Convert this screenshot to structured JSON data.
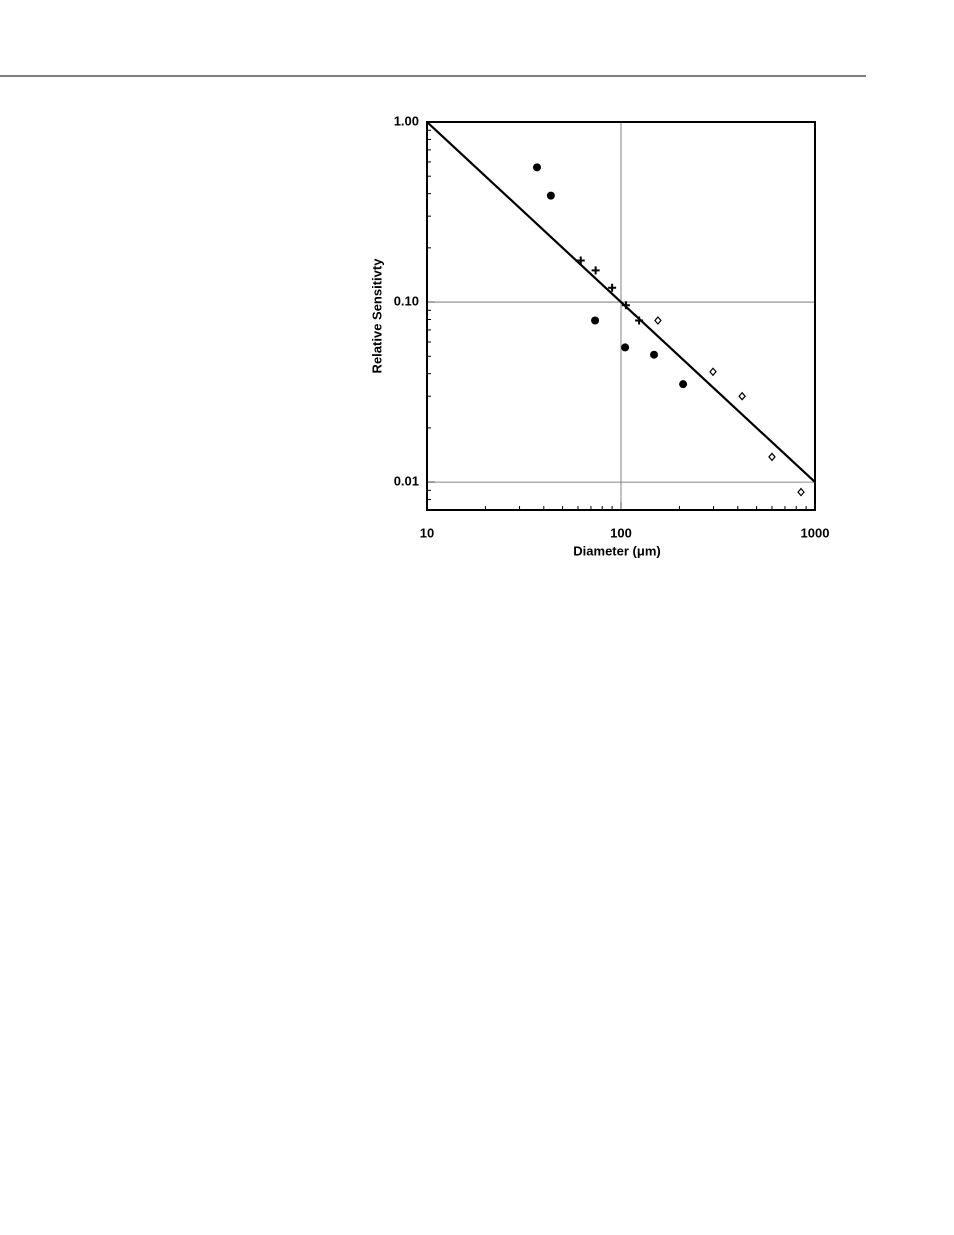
{
  "chart_data": {
    "type": "scatter",
    "xlabel": "Diameter (μm)",
    "ylabel": "Relative Sensitivty",
    "xscale": "log",
    "yscale": "log",
    "xlim": [
      10,
      1000
    ],
    "ylim": [
      0.007,
      1.0
    ],
    "xticks": [
      10,
      100,
      1000
    ],
    "yticks": [
      {
        "value": 1.0,
        "label": "1.00"
      },
      {
        "value": 0.1,
        "label": "0.10"
      },
      0.01
    ],
    "grid": true,
    "series": [
      {
        "marker": "circle",
        "color": "#000000",
        "x": [
          36.9,
          43.5,
          73.5,
          105,
          148,
          209
        ],
        "values": [
          0.56,
          0.39,
          0.079,
          0.056,
          0.051,
          0.035
        ]
      },
      {
        "marker": "cross",
        "color": "#000000",
        "x": [
          62,
          74,
          90,
          106,
          124
        ],
        "values": [
          0.17,
          0.15,
          0.12,
          0.096,
          0.079
        ]
      },
      {
        "marker": "diamond",
        "color": "#000000",
        "x": [
          155,
          298,
          421,
          600,
          847
        ],
        "values": [
          0.079,
          0.041,
          0.03,
          0.0138,
          0.0088
        ]
      },
      {
        "marker": "line",
        "color": "#000000",
        "x": [
          10,
          1000
        ],
        "values": [
          1.0,
          0.01
        ]
      }
    ]
  }
}
